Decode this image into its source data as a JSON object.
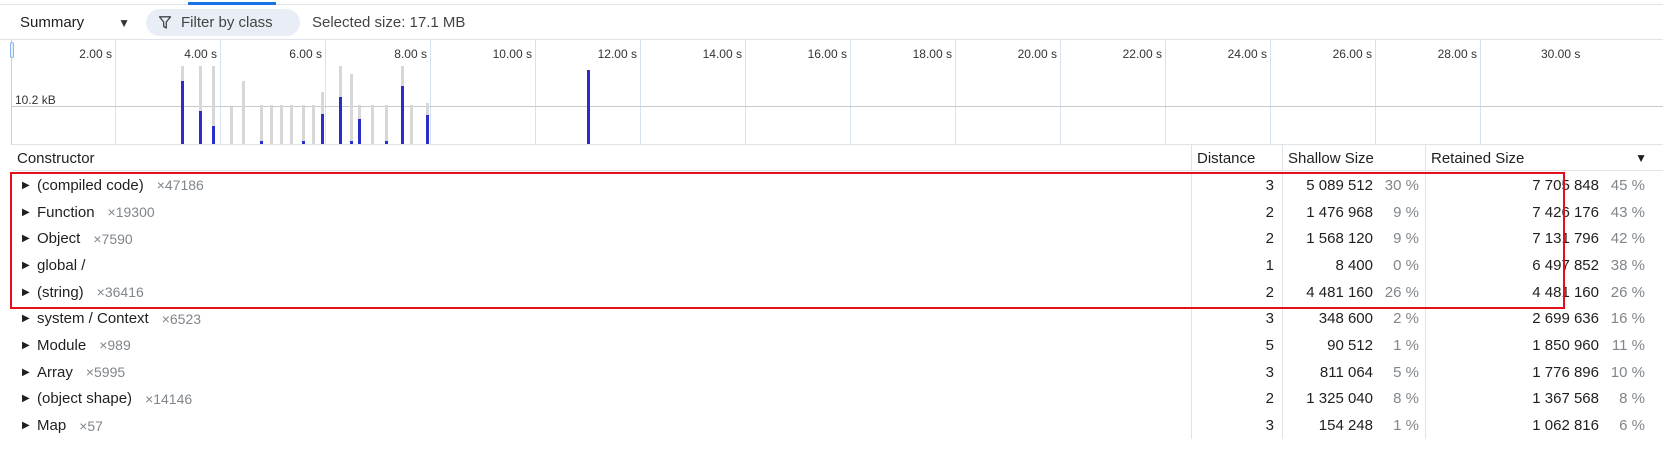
{
  "toolbar": {
    "view_label": "Summary",
    "filter_label": "Filter by class",
    "selected_size": "Selected size: 17.1 MB"
  },
  "timeline": {
    "ticks": [
      "2.00 s",
      "4.00 s",
      "6.00 s",
      "8.00 s",
      "10.00 s",
      "12.00 s",
      "14.00 s",
      "16.00 s",
      "18.00 s",
      "20.00 s",
      "22.00 s",
      "24.00 s",
      "26.00 s",
      "28.00 s",
      "30.00 s"
    ],
    "size_label": "10.2 kB"
  },
  "grid": {
    "headers": {
      "constructor": "Constructor",
      "distance": "Distance",
      "shallow": "Shallow Size",
      "retained": "Retained Size"
    },
    "rows": [
      {
        "name": "(compiled code)",
        "count": "×47186",
        "distance": "3",
        "shallow": "5 089 512",
        "shallow_pct": "30 %",
        "retained": "7 705 848",
        "retained_pct": "45 %"
      },
      {
        "name": "Function",
        "count": "×19300",
        "distance": "2",
        "shallow": "1 476 968",
        "shallow_pct": "9 %",
        "retained": "7 426 176",
        "retained_pct": "43 %"
      },
      {
        "name": "Object",
        "count": "×7590",
        "distance": "2",
        "shallow": "1 568 120",
        "shallow_pct": "9 %",
        "retained": "7 131 796",
        "retained_pct": "42 %"
      },
      {
        "name": "global /",
        "count": "",
        "distance": "1",
        "shallow": "8 400",
        "shallow_pct": "0 %",
        "retained": "6 497 852",
        "retained_pct": "38 %"
      },
      {
        "name": "(string)",
        "count": "×36416",
        "distance": "2",
        "shallow": "4 481 160",
        "shallow_pct": "26 %",
        "retained": "4 481 160",
        "retained_pct": "26 %"
      },
      {
        "name": "system / Context",
        "count": "×6523",
        "distance": "3",
        "shallow": "348 600",
        "shallow_pct": "2 %",
        "retained": "2 699 636",
        "retained_pct": "16 %"
      },
      {
        "name": "Module",
        "count": "×989",
        "distance": "5",
        "shallow": "90 512",
        "shallow_pct": "1 %",
        "retained": "1 850 960",
        "retained_pct": "11 %"
      },
      {
        "name": "Array",
        "count": "×5995",
        "distance": "3",
        "shallow": "811 064",
        "shallow_pct": "5 %",
        "retained": "1 776 896",
        "retained_pct": "10 %"
      },
      {
        "name": "(object shape)",
        "count": "×14146",
        "distance": "2",
        "shallow": "1 325 040",
        "shallow_pct": "8 %",
        "retained": "1 367 568",
        "retained_pct": "8 %"
      },
      {
        "name": "Map",
        "count": "×57",
        "distance": "3",
        "shallow": "154 248",
        "shallow_pct": "1 %",
        "retained": "1 062 816",
        "retained_pct": "6 %"
      }
    ]
  },
  "colors": {
    "accent": "#1a73e8",
    "allocation_bar": "#2a2ec8",
    "freed_bar": "#d7d7d7",
    "highlight_box": "#e3101a"
  }
}
